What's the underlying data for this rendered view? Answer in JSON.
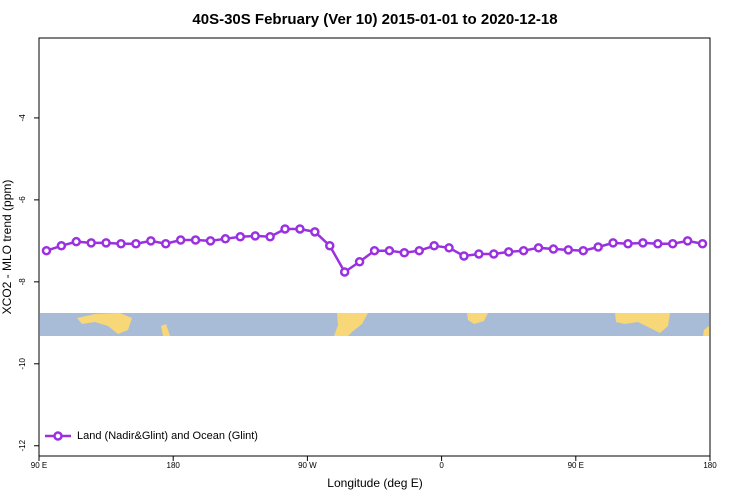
{
  "chart_data": {
    "type": "line",
    "title": "40S-30S February (Ver 10)   2015-01-01 to 2020-12-18",
    "x_label": "Longitude (deg E)",
    "y_label": "XCO2 - MLO trend (ppm)",
    "x": [
      95,
      105,
      115,
      125,
      135,
      145,
      155,
      165,
      175,
      185,
      195,
      205,
      215,
      225,
      235,
      245,
      255,
      265,
      275,
      285,
      295,
      305,
      315,
      325,
      335,
      345,
      355,
      365,
      375,
      385,
      395,
      405,
      415,
      425,
      435,
      445,
      455,
      465,
      475,
      485,
      495,
      505,
      515,
      525,
      535
    ],
    "series": [
      {
        "name": "Land (Nadir&Glint) and Ocean (Glint)",
        "color": "#9b30e0",
        "values": [
          -7.24,
          -7.12,
          -7.02,
          -7.05,
          -7.05,
          -7.07,
          -7.07,
          -7.0,
          -7.07,
          -6.98,
          -6.98,
          -7.0,
          -6.95,
          -6.9,
          -6.88,
          -6.9,
          -6.71,
          -6.71,
          -6.78,
          -7.12,
          -7.76,
          -7.51,
          -7.24,
          -7.24,
          -7.29,
          -7.24,
          -7.12,
          -7.17,
          -7.37,
          -7.32,
          -7.32,
          -7.27,
          -7.24,
          -7.17,
          -7.2,
          -7.22,
          -7.24,
          -7.15,
          -7.05,
          -7.07,
          -7.05,
          -7.07,
          -7.07,
          -7.0,
          -7.07
        ]
      }
    ],
    "xlim": [
      90,
      540
    ],
    "xticks": [
      {
        "value": 90,
        "label": "90 E"
      },
      180,
      {
        "value": 270,
        "label": "90 W"
      },
      {
        "value": 360,
        "label": "0"
      },
      {
        "value": 450,
        "label": "90 E"
      },
      {
        "value": 540,
        "label": "180"
      }
    ],
    "ylim": [
      -12.25,
      -2.05
    ],
    "yticks": [
      -4,
      -6,
      -8,
      -10,
      -12
    ],
    "legend": "bottom-left"
  }
}
